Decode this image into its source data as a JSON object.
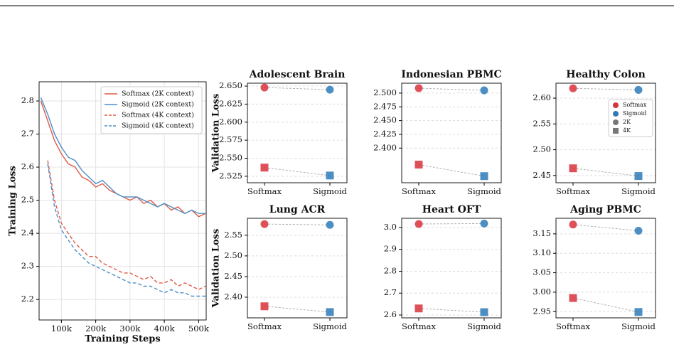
{
  "chart_data": [
    {
      "type": "line",
      "xlabel": "Training Steps",
      "ylabel": "Training Loss",
      "x": [
        40000,
        60000,
        80000,
        100000,
        120000,
        140000,
        160000,
        180000,
        200000,
        220000,
        240000,
        260000,
        280000,
        300000,
        320000,
        340000,
        360000,
        380000,
        400000,
        420000,
        440000,
        460000,
        480000,
        500000,
        520000
      ],
      "series": [
        {
          "name": "Softmax (2K context)",
          "color": "#e05a47",
          "linestyle": "solid",
          "values": [
            2.8,
            2.74,
            2.68,
            2.64,
            2.61,
            2.6,
            2.57,
            2.56,
            2.54,
            2.55,
            2.53,
            2.52,
            2.51,
            2.5,
            2.51,
            2.49,
            2.5,
            2.48,
            2.49,
            2.47,
            2.48,
            2.46,
            2.47,
            2.45,
            2.46
          ]
        },
        {
          "name": "Sigmoid (2K context)",
          "color": "#4c8fc8",
          "linestyle": "solid",
          "values": [
            2.81,
            2.76,
            2.7,
            2.66,
            2.63,
            2.62,
            2.59,
            2.57,
            2.55,
            2.56,
            2.54,
            2.52,
            2.51,
            2.51,
            2.51,
            2.5,
            2.49,
            2.48,
            2.49,
            2.48,
            2.47,
            2.46,
            2.47,
            2.46,
            2.46
          ]
        },
        {
          "name": "Softmax (4K context)",
          "color": "#e05a47",
          "linestyle": "dashed",
          "values": [
            null,
            2.62,
            2.5,
            2.43,
            2.4,
            2.37,
            2.35,
            2.33,
            2.33,
            2.31,
            2.3,
            2.29,
            2.28,
            2.28,
            2.27,
            2.26,
            2.27,
            2.25,
            2.25,
            2.26,
            2.24,
            2.25,
            2.24,
            2.23,
            2.24
          ]
        },
        {
          "name": "Sigmoid (4K context)",
          "color": "#4c8fc8",
          "linestyle": "dashed",
          "values": [
            null,
            2.61,
            2.48,
            2.41,
            2.38,
            2.35,
            2.33,
            2.31,
            2.3,
            2.29,
            2.28,
            2.27,
            2.26,
            2.25,
            2.25,
            2.24,
            2.24,
            2.23,
            2.22,
            2.23,
            2.22,
            2.22,
            2.21,
            2.21,
            2.21
          ]
        }
      ],
      "xlim": [
        35000,
        522000
      ],
      "xticks": [
        {
          "value": 100000,
          "label": "100k"
        },
        {
          "value": 200000,
          "label": "200k"
        },
        {
          "value": 300000,
          "label": "300k"
        },
        {
          "value": 400000,
          "label": "400k"
        },
        {
          "value": 500000,
          "label": "500k"
        }
      ],
      "ylim": [
        2.138,
        2.858
      ],
      "yticks": [
        2.2,
        2.3,
        2.4,
        2.5,
        2.6,
        2.7,
        2.8
      ],
      "grid": true,
      "legend": "upper right"
    },
    {
      "type": "dot",
      "title": "Adolescent Brain",
      "ylabel": "Validation Loss",
      "categories": [
        "Softmax",
        "Sigmoid"
      ],
      "category_colors": [
        "#d8333c",
        "#2f7bb8"
      ],
      "series": [
        {
          "name": "2K",
          "marker": "circle",
          "values": [
            2.648,
            2.645
          ]
        },
        {
          "name": "4K",
          "marker": "square",
          "values": [
            2.537,
            2.526
          ]
        }
      ],
      "ylim": [
        2.516,
        2.654
      ],
      "yticks": [
        2.525,
        {
          "value": 2.55,
          "label": "2.550"
        },
        2.575,
        {
          "value": 2.6,
          "label": "2.600"
        },
        2.625,
        {
          "value": 2.65,
          "label": "2.650"
        }
      ],
      "grid": true
    },
    {
      "type": "dot",
      "title": "Indonesian PBMC",
      "categories": [
        "Softmax",
        "Sigmoid"
      ],
      "category_colors": [
        "#d8333c",
        "#2f7bb8"
      ],
      "series": [
        {
          "name": "2K",
          "marker": "circle",
          "values": [
            2.509,
            2.505
          ]
        },
        {
          "name": "4K",
          "marker": "square",
          "values": [
            2.37,
            2.349
          ]
        }
      ],
      "ylim": [
        2.337,
        2.518
      ],
      "yticks": [
        {
          "value": 2.4,
          "label": "2.400"
        },
        2.425,
        {
          "value": 2.45,
          "label": "2.450"
        },
        2.475,
        {
          "value": 2.5,
          "label": "2.500"
        }
      ],
      "grid": true
    },
    {
      "type": "dot",
      "title": "Healthy Colon",
      "categories": [
        "Softmax",
        "Sigmoid"
      ],
      "category_colors": [
        "#d8333c",
        "#2f7bb8"
      ],
      "series": [
        {
          "name": "2K",
          "marker": "circle",
          "values": [
            2.619,
            2.616
          ]
        },
        {
          "name": "4K",
          "marker": "square",
          "values": [
            2.464,
            2.449
          ]
        }
      ],
      "ylim": [
        2.436,
        2.629
      ],
      "yticks": [
        2.45,
        {
          "value": 2.5,
          "label": "2.50"
        },
        2.55,
        {
          "value": 2.6,
          "label": "2.60"
        }
      ],
      "grid": true,
      "legend": "upper right"
    },
    {
      "type": "dot",
      "title": "Lung ACR",
      "ylabel": "Validation Loss",
      "categories": [
        "Softmax",
        "Sigmoid"
      ],
      "category_colors": [
        "#d8333c",
        "#2f7bb8"
      ],
      "series": [
        {
          "name": "2K",
          "marker": "circle",
          "values": [
            2.577,
            2.575
          ]
        },
        {
          "name": "4K",
          "marker": "square",
          "values": [
            2.378,
            2.364
          ]
        }
      ],
      "ylim": [
        2.35,
        2.591
      ],
      "yticks": [
        {
          "value": 2.4,
          "label": "2.40"
        },
        2.45,
        {
          "value": 2.5,
          "label": "2.50"
        },
        2.55
      ],
      "grid": true
    },
    {
      "type": "dot",
      "title": "Heart OFT",
      "categories": [
        "Softmax",
        "Sigmoid"
      ],
      "category_colors": [
        "#d8333c",
        "#2f7bb8"
      ],
      "series": [
        {
          "name": "2K",
          "marker": "circle",
          "values": [
            3.016,
            3.018
          ]
        },
        {
          "name": "4K",
          "marker": "square",
          "values": [
            2.63,
            2.613
          ]
        }
      ],
      "ylim": [
        2.587,
        3.042
      ],
      "yticks": [
        2.6,
        2.7,
        2.8,
        2.9,
        {
          "value": 3.0,
          "label": "3.0"
        }
      ],
      "grid": true
    },
    {
      "type": "dot",
      "title": "Aging PBMC",
      "categories": [
        "Softmax",
        "Sigmoid"
      ],
      "category_colors": [
        "#d8333c",
        "#2f7bb8"
      ],
      "series": [
        {
          "name": "2K",
          "marker": "circle",
          "values": [
            3.174,
            3.158
          ]
        },
        {
          "name": "4K",
          "marker": "square",
          "values": [
            2.985,
            2.949
          ]
        }
      ],
      "ylim": [
        2.934,
        3.19
      ],
      "yticks": [
        2.95,
        {
          "value": 3.0,
          "label": "3.00"
        },
        3.05,
        {
          "value": 3.1,
          "label": "3.10"
        },
        3.15
      ],
      "grid": true
    }
  ]
}
